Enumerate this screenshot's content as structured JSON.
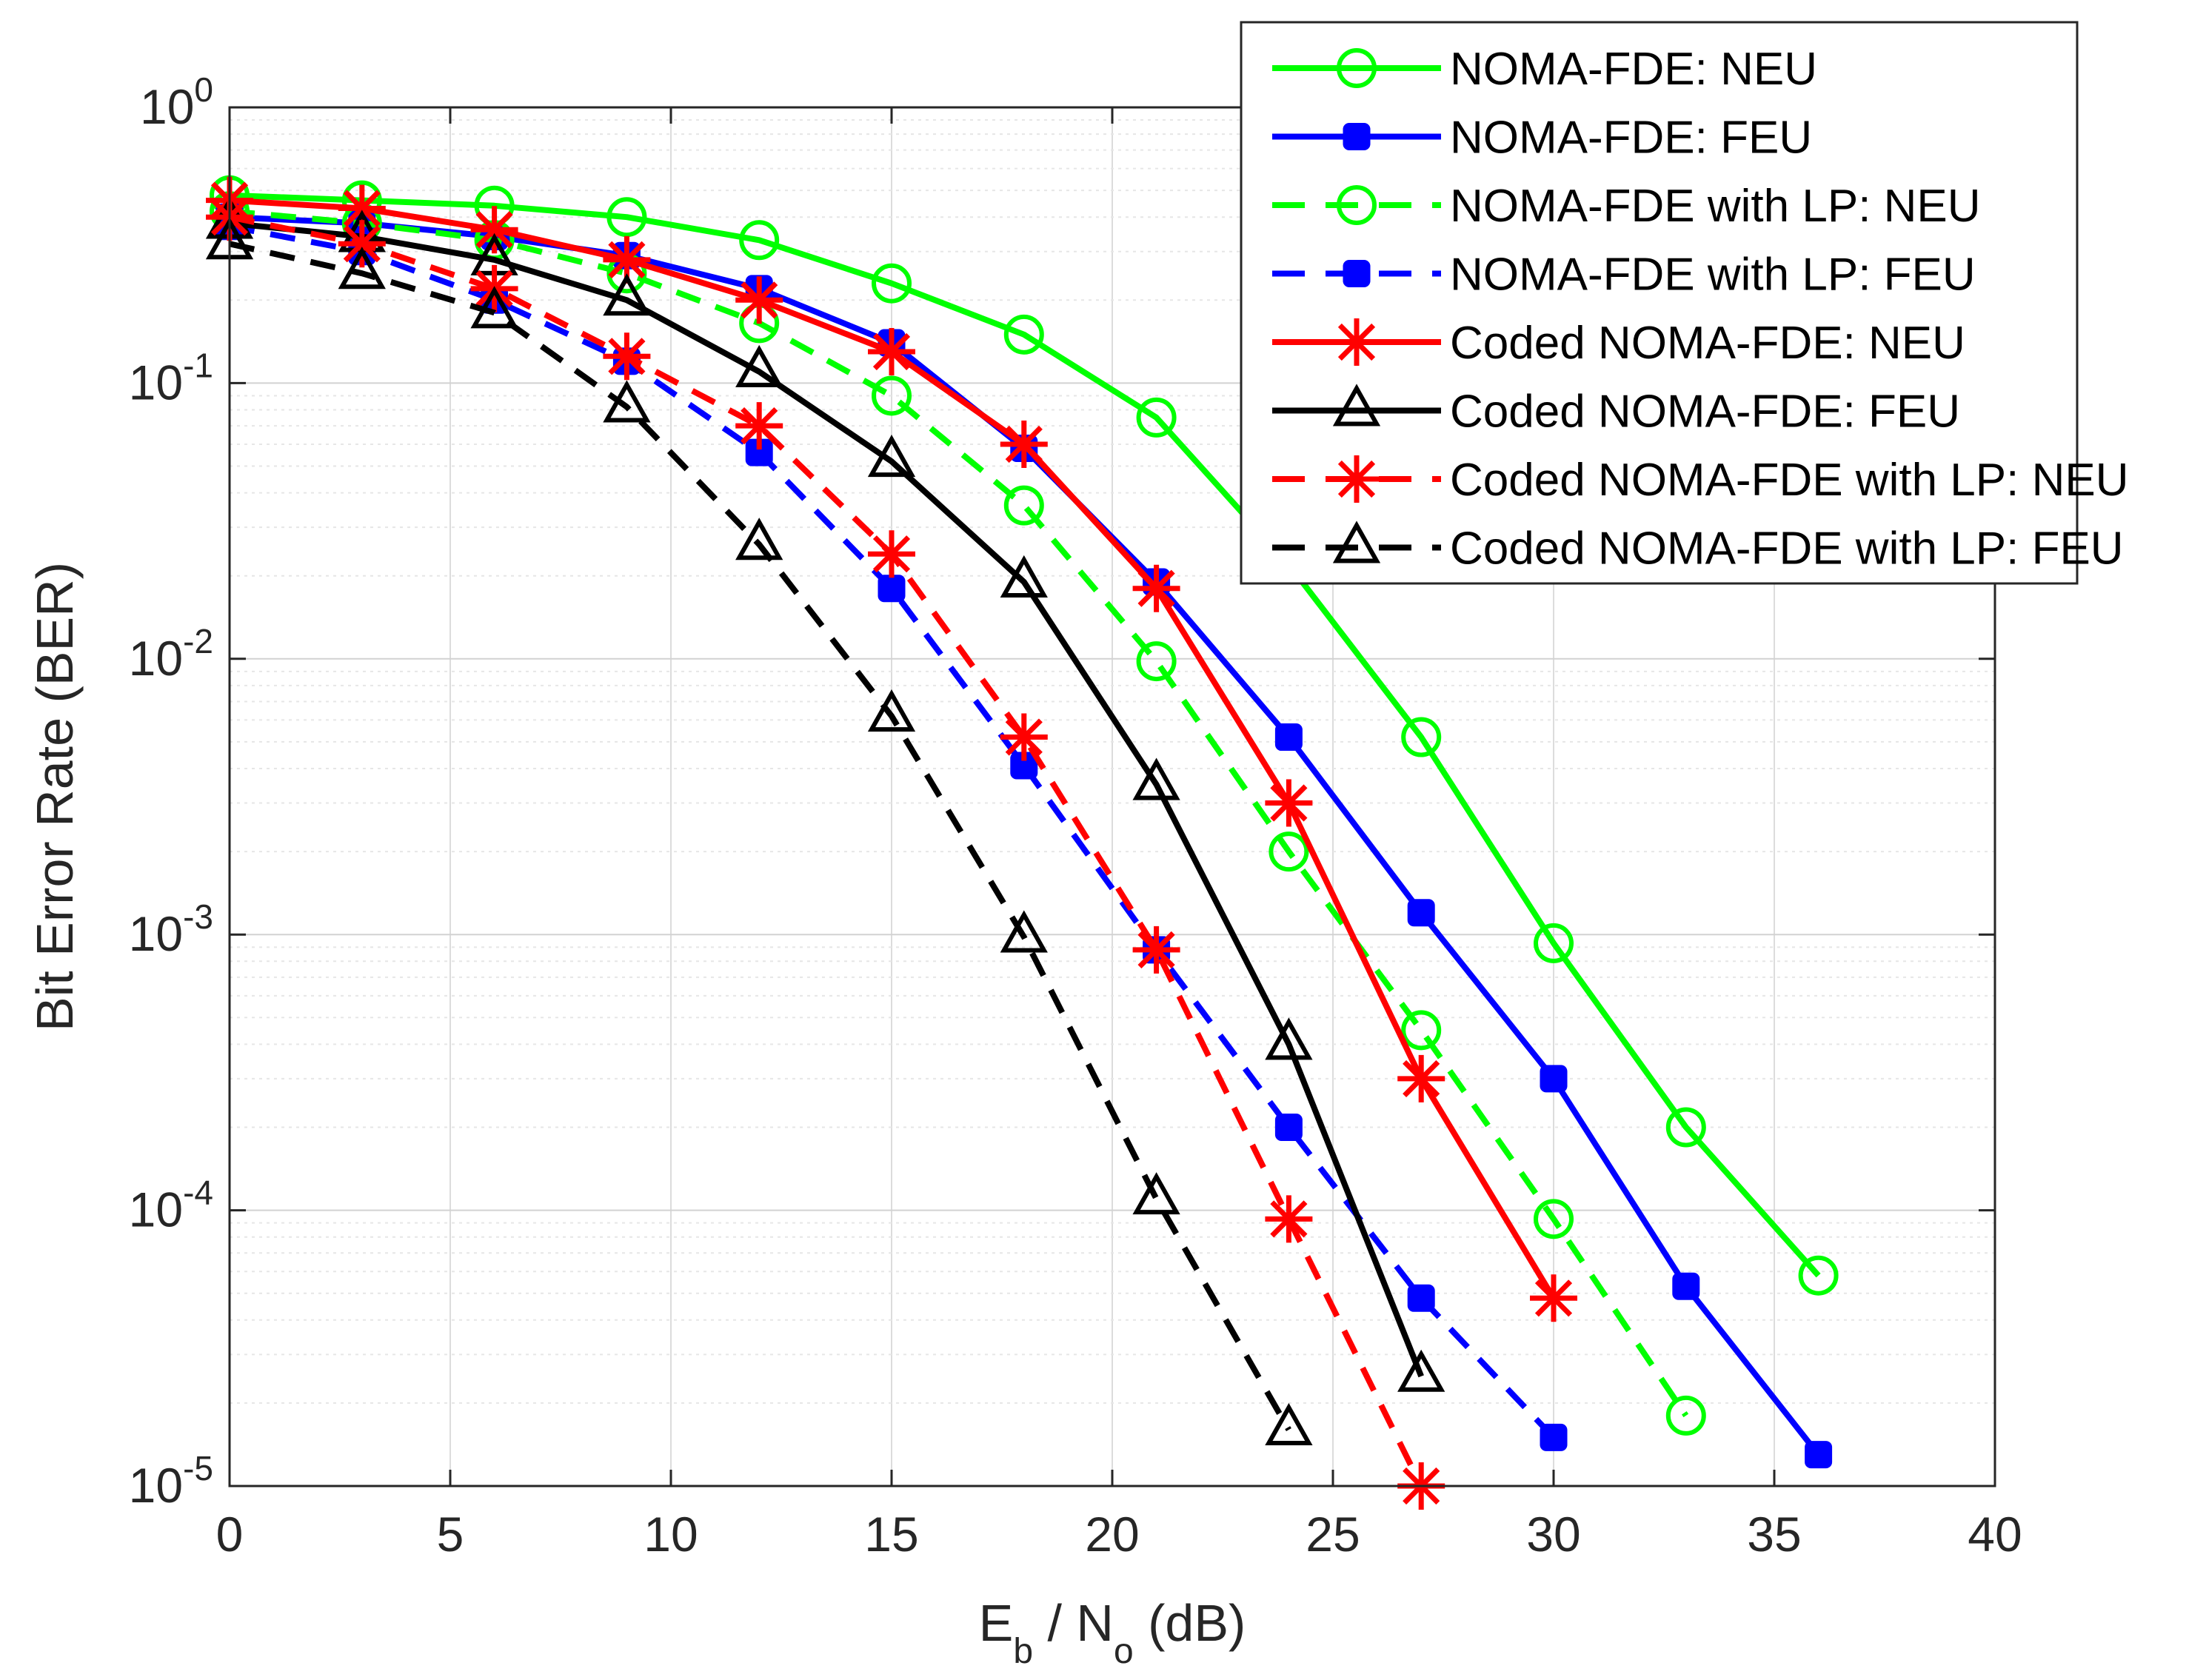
{
  "chart_data": {
    "type": "line",
    "title": "",
    "xlabel": {
      "main": "E",
      "sub1": "b",
      "mid": " / N",
      "sub2": "o",
      "tail": " (dB)"
    },
    "ylabel": "Bit Error Rate (BER)",
    "xlim": [
      0,
      40
    ],
    "ylim_log10": [
      -5,
      0
    ],
    "y_scale": "log",
    "grid": true,
    "legend_position": "top-right",
    "x_ticks": [
      {
        "value": 0,
        "label": "0"
      },
      {
        "value": 5,
        "label": "5"
      },
      {
        "value": 10,
        "label": "10"
      },
      {
        "value": 15,
        "label": "15"
      },
      {
        "value": 20,
        "label": "20"
      },
      {
        "value": 25,
        "label": "25"
      },
      {
        "value": 30,
        "label": "30"
      },
      {
        "value": 35,
        "label": "35"
      },
      {
        "value": 40,
        "label": "40"
      }
    ],
    "y_ticks": [
      {
        "exp": 0,
        "base": "10",
        "sup": "0"
      },
      {
        "exp": -1,
        "base": "10",
        "sup": "-1"
      },
      {
        "exp": -2,
        "base": "10",
        "sup": "-2"
      },
      {
        "exp": -3,
        "base": "10",
        "sup": "-3"
      },
      {
        "exp": -4,
        "base": "10",
        "sup": "-4"
      },
      {
        "exp": -5,
        "base": "10",
        "sup": "-5"
      }
    ],
    "series": [
      {
        "name": "NOMA-FDE: NEU",
        "color": "#00ff00",
        "dash": "solid",
        "marker": "circle",
        "x": [
          0,
          3,
          6,
          9,
          12,
          15,
          18,
          21,
          24,
          27,
          30,
          33,
          36
        ],
        "y": [
          0.48,
          0.46,
          0.44,
          0.4,
          0.33,
          0.23,
          0.15,
          0.075,
          0.022,
          0.0052,
          0.00093,
          0.0002,
          5.8e-05
        ]
      },
      {
        "name": "NOMA-FDE: FEU",
        "color": "#0000ff",
        "dash": "solid",
        "marker": "square-filled",
        "x": [
          0,
          3,
          6,
          9,
          12,
          15,
          18,
          21,
          24,
          27,
          30,
          33,
          36
        ],
        "y": [
          0.4,
          0.38,
          0.34,
          0.29,
          0.22,
          0.14,
          0.058,
          0.019,
          0.0052,
          0.0012,
          0.0003,
          5.3e-05,
          1.3e-05
        ]
      },
      {
        "name": "NOMA-FDE with LP: NEU",
        "color": "#00ff00",
        "dash": "dashed",
        "marker": "circle",
        "x": [
          0,
          3,
          6,
          9,
          12,
          15,
          18,
          21,
          24,
          27,
          30,
          33
        ],
        "y": [
          0.42,
          0.38,
          0.33,
          0.25,
          0.165,
          0.09,
          0.036,
          0.0098,
          0.002,
          0.00045,
          9.3e-05,
          1.8e-05
        ]
      },
      {
        "name": "NOMA-FDE with LP: FEU",
        "color": "#0000ff",
        "dash": "dashed",
        "marker": "square-filled",
        "x": [
          0,
          3,
          6,
          9,
          12,
          15,
          18,
          21,
          24,
          27,
          30
        ],
        "y": [
          0.37,
          0.3,
          0.2,
          0.12,
          0.056,
          0.018,
          0.0041,
          0.00088,
          0.0002,
          4.8e-05,
          1.5e-05
        ]
      },
      {
        "name": "Coded NOMA-FDE: NEU",
        "color": "#ff0000",
        "dash": "solid",
        "marker": "asterisk",
        "x": [
          0,
          3,
          6,
          9,
          12,
          15,
          18,
          21,
          24,
          27,
          30
        ],
        "y": [
          0.46,
          0.43,
          0.36,
          0.28,
          0.2,
          0.13,
          0.06,
          0.018,
          0.003,
          0.0003,
          4.8e-05
        ]
      },
      {
        "name": "Coded NOMA-FDE: FEU",
        "color": "#000000",
        "dash": "solid",
        "marker": "triangle",
        "x": [
          0,
          3,
          6,
          9,
          12,
          15,
          18,
          21,
          24,
          27
        ],
        "y": [
          0.38,
          0.34,
          0.28,
          0.2,
          0.11,
          0.052,
          0.019,
          0.0035,
          0.0004,
          2.5e-05
        ]
      },
      {
        "name": "Coded NOMA-FDE with LP: NEU",
        "color": "#ff0000",
        "dash": "dashed",
        "marker": "asterisk",
        "x": [
          0,
          3,
          6,
          9,
          12,
          15,
          18,
          21,
          24,
          27
        ],
        "y": [
          0.4,
          0.32,
          0.22,
          0.125,
          0.07,
          0.024,
          0.0052,
          0.00088,
          9.3e-05,
          1e-05
        ]
      },
      {
        "name": "Coded NOMA-FDE with LP: FEU",
        "color": "#000000",
        "dash": "dashed",
        "marker": "triangle",
        "x": [
          0,
          3,
          6,
          9,
          12,
          15,
          18,
          21,
          24
        ],
        "y": [
          0.32,
          0.25,
          0.18,
          0.082,
          0.026,
          0.0062,
          0.00098,
          0.00011,
          1.6e-05
        ]
      }
    ]
  }
}
